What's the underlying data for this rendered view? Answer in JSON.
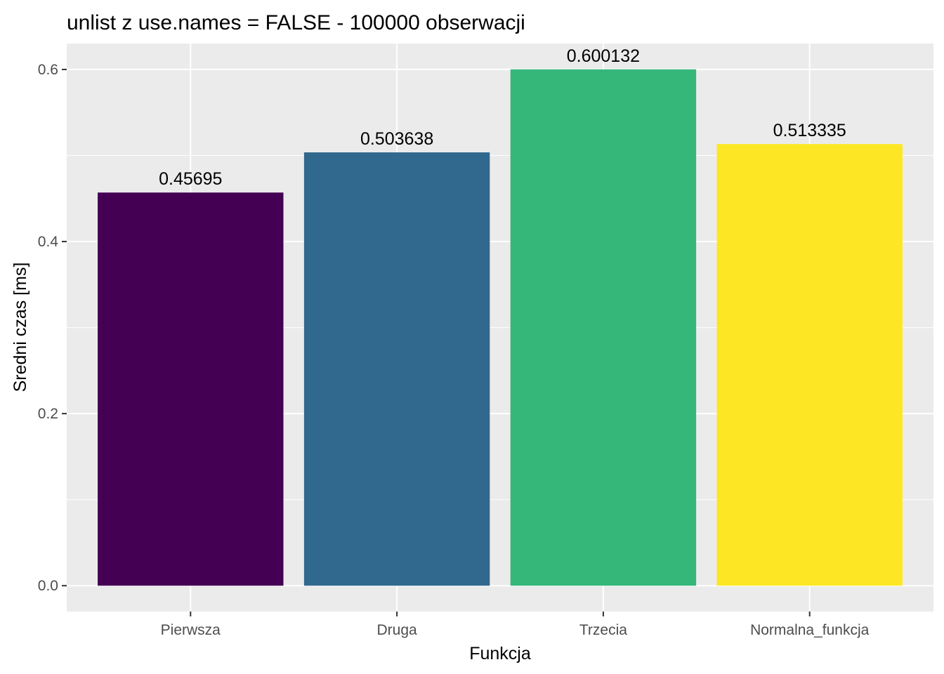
{
  "chart_data": {
    "type": "bar",
    "title": "unlist z use.names = FALSE - 100000 obserwacji",
    "xlabel": "Funkcja",
    "ylabel": "Sredni czas [ms]",
    "categories": [
      "Pierwsza",
      "Druga",
      "Trzecia",
      "Normalna_funkcja"
    ],
    "values": [
      0.45695,
      0.503638,
      0.600132,
      0.513335
    ],
    "value_labels": [
      "0.45695",
      "0.503638",
      "0.600132",
      "0.513335"
    ],
    "colors": [
      "#440154",
      "#31688E",
      "#35B779",
      "#FDE725"
    ],
    "ylim": [
      -0.0300066,
      0.6301386
    ],
    "yticks": [
      0.0,
      0.2,
      0.4,
      0.6
    ],
    "ytick_labels": [
      "0.0",
      "0.2",
      "0.4",
      "0.6"
    ],
    "grid": true,
    "legend": "none",
    "panel_background": "#EBEBEB",
    "grid_color": "#FFFFFF"
  }
}
